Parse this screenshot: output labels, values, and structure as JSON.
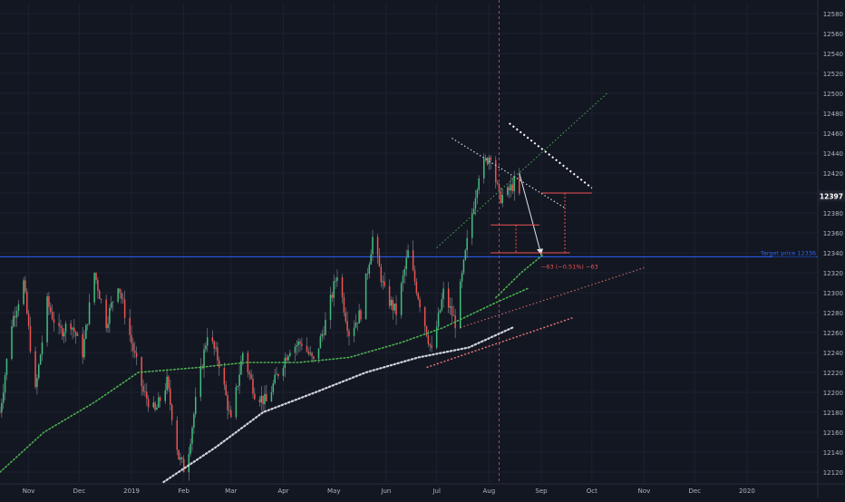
{
  "colors": {
    "background": "#131722",
    "grid": "#1e2230",
    "axis_text": "#b2b5be",
    "bull": "#26a69a",
    "bull_bright": "#3fbf7f",
    "bear": "#ef5350",
    "wick": "#8a8f99",
    "target_line": "#2962ff",
    "ma_green": "#4caf50",
    "ma_white": "#d1d4dc",
    "red_dotted": "#e57373",
    "date_marker": "#9c4a74"
  },
  "chart_data": {
    "type": "candlestick",
    "title": "",
    "y_axis": {
      "min": 12110,
      "max": 12590,
      "ticks": [
        12120,
        12140,
        12160,
        12180,
        12200,
        12220,
        12240,
        12260,
        12280,
        12300,
        12320,
        12340,
        12360,
        12380,
        12400,
        12420,
        12440,
        12460,
        12480,
        12500,
        12520,
        12540,
        12560,
        12580
      ]
    },
    "x_axis": {
      "domain": [
        "2018-10-15",
        "2020-02-12"
      ],
      "ticks": [
        {
          "label": "Nov",
          "date": "2018-11-01"
        },
        {
          "label": "Dec",
          "date": "2018-12-01"
        },
        {
          "label": "2019",
          "date": "2019-01-01"
        },
        {
          "label": "Feb",
          "date": "2019-02-01"
        },
        {
          "label": "Mar",
          "date": "2019-03-01"
        },
        {
          "label": "Apr",
          "date": "2019-04-01"
        },
        {
          "label": "May",
          "date": "2019-05-01"
        },
        {
          "label": "Jun",
          "date": "2019-06-01"
        },
        {
          "label": "Jul",
          "date": "2019-07-01"
        },
        {
          "label": "Aug",
          "date": "2019-08-01"
        },
        {
          "label": "Sep",
          "date": "2019-09-01"
        },
        {
          "label": "Oct",
          "date": "2019-10-01"
        },
        {
          "label": "Nov",
          "date": "2019-11-01"
        },
        {
          "label": "Dec",
          "date": "2019-12-01"
        },
        {
          "label": "2020",
          "date": "2020-01-01"
        }
      ]
    },
    "price_path": [
      [
        "2018-10-15",
        12180
      ],
      [
        "2018-10-22",
        12270
      ],
      [
        "2018-10-29",
        12310
      ],
      [
        "2018-11-05",
        12200
      ],
      [
        "2018-11-12",
        12290
      ],
      [
        "2018-11-19",
        12260
      ],
      [
        "2018-11-26",
        12270
      ],
      [
        "2018-12-03",
        12240
      ],
      [
        "2018-12-10",
        12320
      ],
      [
        "2018-12-17",
        12270
      ],
      [
        "2018-12-24",
        12310
      ],
      [
        "2019-01-01",
        12250
      ],
      [
        "2019-01-08",
        12200
      ],
      [
        "2019-01-15",
        12180
      ],
      [
        "2019-01-22",
        12210
      ],
      [
        "2019-01-29",
        12135
      ],
      [
        "2019-02-02",
        12120
      ],
      [
        "2019-02-08",
        12190
      ],
      [
        "2019-02-15",
        12260
      ],
      [
        "2019-02-22",
        12230
      ],
      [
        "2019-03-01",
        12170
      ],
      [
        "2019-03-08",
        12240
      ],
      [
        "2019-03-15",
        12200
      ],
      [
        "2019-03-22",
        12190
      ],
      [
        "2019-03-29",
        12220
      ],
      [
        "2019-04-05",
        12245
      ],
      [
        "2019-04-12",
        12250
      ],
      [
        "2019-04-19",
        12230
      ],
      [
        "2019-04-26",
        12270
      ],
      [
        "2019-05-03",
        12320
      ],
      [
        "2019-05-10",
        12260
      ],
      [
        "2019-05-17",
        12280
      ],
      [
        "2019-05-24",
        12355
      ],
      [
        "2019-05-31",
        12300
      ],
      [
        "2019-06-07",
        12280
      ],
      [
        "2019-06-14",
        12340
      ],
      [
        "2019-06-21",
        12290
      ],
      [
        "2019-06-28",
        12240
      ],
      [
        "2019-07-05",
        12300
      ],
      [
        "2019-07-12",
        12270
      ],
      [
        "2019-07-19",
        12350
      ],
      [
        "2019-07-26",
        12420
      ],
      [
        "2019-08-02",
        12440
      ],
      [
        "2019-08-07",
        12395
      ],
      [
        "2019-08-12",
        12400
      ],
      [
        "2019-08-16",
        12410
      ],
      [
        "2019-08-19",
        12397
      ]
    ],
    "series": [
      {
        "label": "green-ma",
        "style": "dotted",
        "color": "green",
        "points": [
          [
            "2018-10-15",
            12120
          ],
          [
            "2018-11-10",
            12160
          ],
          [
            "2018-12-10",
            12190
          ],
          [
            "2019-01-05",
            12220
          ],
          [
            "2019-02-10",
            12225
          ],
          [
            "2019-03-10",
            12230
          ],
          [
            "2019-04-10",
            12230
          ],
          [
            "2019-05-10",
            12235
          ],
          [
            "2019-06-10",
            12250
          ],
          [
            "2019-07-05",
            12265
          ],
          [
            "2019-08-05",
            12290
          ],
          [
            "2019-08-25",
            12305
          ]
        ]
      },
      {
        "label": "green-ma-projection",
        "style": "dotted",
        "color": "green",
        "points": [
          [
            "2019-08-05",
            12295
          ],
          [
            "2019-08-20",
            12320
          ],
          [
            "2019-09-02",
            12338
          ]
        ]
      },
      {
        "label": "white-ma",
        "style": "dotted",
        "color": "white",
        "points": [
          [
            "2019-01-20",
            12110
          ],
          [
            "2019-02-20",
            12145
          ],
          [
            "2019-03-20",
            12180
          ],
          [
            "2019-04-20",
            12200
          ],
          [
            "2019-05-20",
            12220
          ],
          [
            "2019-06-20",
            12235
          ],
          [
            "2019-07-20",
            12245
          ],
          [
            "2019-08-15",
            12265
          ]
        ]
      }
    ],
    "current_price": {
      "value": 12397,
      "label": "12397"
    },
    "target": {
      "value": 12336,
      "label": "Target price 12336"
    },
    "measurement": {
      "label": "−63 (−0.51%) −63"
    },
    "date_marker": "2019-08-07"
  }
}
